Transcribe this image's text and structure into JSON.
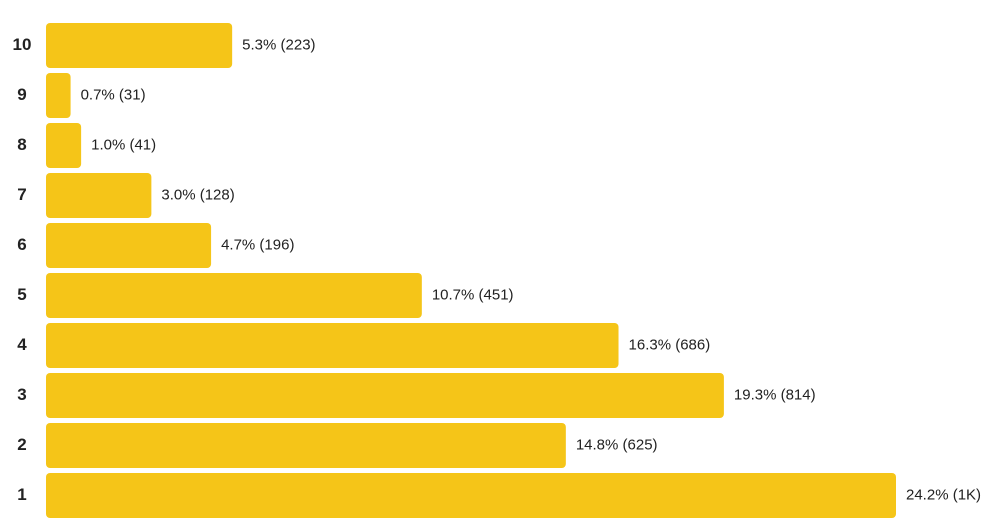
{
  "chart_data": {
    "type": "bar",
    "orientation": "horizontal",
    "categories": [
      "10",
      "9",
      "8",
      "7",
      "6",
      "5",
      "4",
      "3",
      "2",
      "1"
    ],
    "values": [
      5.3,
      0.7,
      1.0,
      3.0,
      4.7,
      10.7,
      16.3,
      19.3,
      14.8,
      24.2
    ],
    "value_labels": [
      "5.3% (223)",
      "0.7% (31)",
      "1.0% (41)",
      "3.0% (128)",
      "4.7% (196)",
      "10.7% (451)",
      "16.3% (686)",
      "19.3% (814)",
      "14.8% (625)",
      "24.2% (1K)"
    ],
    "color": "#f5c518"
  }
}
